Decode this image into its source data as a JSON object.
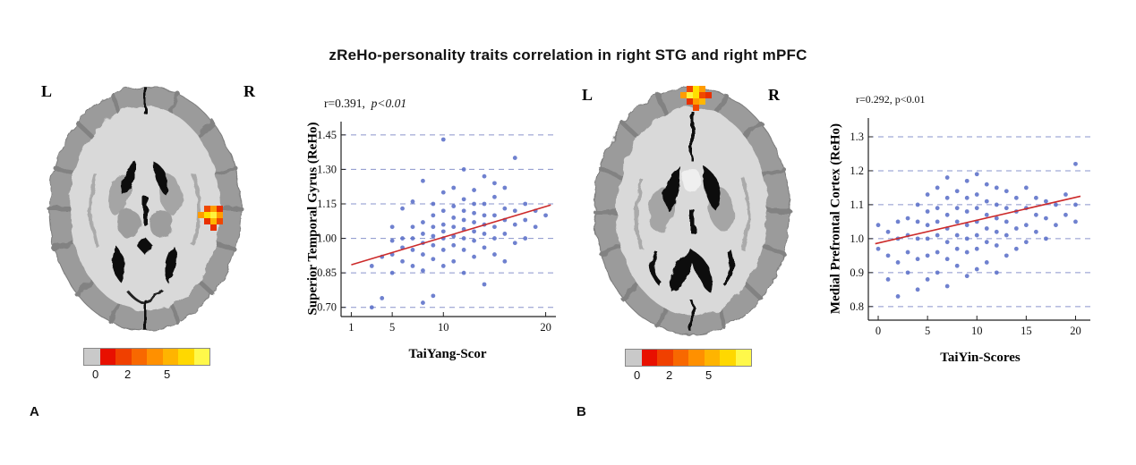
{
  "title": "zReHo-personality traits correlation in right STG and right mPFC",
  "panels": {
    "a": {
      "label": "A",
      "left": "L",
      "right": "R",
      "stat_r": "r=0.391,",
      "stat_p": "p<0.01",
      "colorbar_labels": [
        "0",
        "2",
        "5"
      ]
    },
    "b": {
      "label": "B",
      "left": "L",
      "right": "R",
      "stat": "r=0.292, p<0.01",
      "colorbar_labels": [
        "0",
        "2",
        "5"
      ]
    }
  },
  "colorbar_colors": [
    "#c9c9c9",
    "#e81000",
    "#f04000",
    "#f86800",
    "#ff9000",
    "#ffb400",
    "#ffd800",
    "#fff84a"
  ],
  "chart_data": [
    {
      "type": "scatter",
      "title": "r=0.391, p<0.01",
      "xlabel": "TaiYang-Scor",
      "ylabel": "Superior Temporal Gyrus (ReHo)",
      "xlim": [
        0,
        21
      ],
      "ylim": [
        0.66,
        1.5
      ],
      "xticks": [
        1,
        5,
        10,
        20
      ],
      "xtick_labels": [
        "1",
        "5",
        "10",
        "20"
      ],
      "yticks": [
        0.7,
        0.85,
        1.0,
        1.15,
        1.3,
        1.45
      ],
      "ytick_labels": [
        "0.70",
        "0.85",
        "1.00",
        "1.15",
        "1.30",
        "1.45"
      ],
      "grid": "dashed-horizontal",
      "grid_color": "#8a94cc",
      "point_color": "#5b6fc8",
      "line_color": "#cc2a2a",
      "regression": {
        "x": [
          1,
          20.5
        ],
        "y": [
          0.885,
          1.145
        ]
      },
      "points": [
        [
          3,
          0.7
        ],
        [
          3,
          0.88
        ],
        [
          4,
          0.74
        ],
        [
          4,
          0.92
        ],
        [
          5,
          0.85
        ],
        [
          5,
          0.93
        ],
        [
          5,
          0.99
        ],
        [
          5,
          1.05
        ],
        [
          6,
          0.9
        ],
        [
          6,
          0.96
        ],
        [
          6,
          1.0
        ],
        [
          6,
          1.13
        ],
        [
          7,
          0.88
        ],
        [
          7,
          0.95
        ],
        [
          7,
          1.0
        ],
        [
          7,
          1.05
        ],
        [
          7,
          1.16
        ],
        [
          8,
          0.72
        ],
        [
          8,
          0.86
        ],
        [
          8,
          0.93
        ],
        [
          8,
          0.98
        ],
        [
          8,
          1.02
        ],
        [
          8,
          1.07
        ],
        [
          8,
          1.25
        ],
        [
          9,
          0.75
        ],
        [
          9,
          0.91
        ],
        [
          9,
          0.97
        ],
        [
          9,
          1.01
        ],
        [
          9,
          1.05
        ],
        [
          9,
          1.1
        ],
        [
          9,
          1.15
        ],
        [
          10,
          0.88
        ],
        [
          10,
          0.95
        ],
        [
          10,
          1.0
        ],
        [
          10,
          1.03
        ],
        [
          10,
          1.06
        ],
        [
          10,
          1.12
        ],
        [
          10,
          1.2
        ],
        [
          10,
          1.43
        ],
        [
          11,
          0.9
        ],
        [
          11,
          0.97
        ],
        [
          11,
          1.01
        ],
        [
          11,
          1.05
        ],
        [
          11,
          1.09
        ],
        [
          11,
          1.14
        ],
        [
          11,
          1.22
        ],
        [
          12,
          0.85
        ],
        [
          12,
          0.95
        ],
        [
          12,
          1.0
        ],
        [
          12,
          1.04
        ],
        [
          12,
          1.08
        ],
        [
          12,
          1.12
        ],
        [
          12,
          1.17
        ],
        [
          12,
          1.3
        ],
        [
          13,
          0.92
        ],
        [
          13,
          0.99
        ],
        [
          13,
          1.03
        ],
        [
          13,
          1.07
        ],
        [
          13,
          1.11
        ],
        [
          13,
          1.15
        ],
        [
          13,
          1.21
        ],
        [
          14,
          0.8
        ],
        [
          14,
          0.96
        ],
        [
          14,
          1.02
        ],
        [
          14,
          1.06
        ],
        [
          14,
          1.1
        ],
        [
          14,
          1.15
        ],
        [
          14,
          1.27
        ],
        [
          15,
          0.93
        ],
        [
          15,
          1.0
        ],
        [
          15,
          1.05
        ],
        [
          15,
          1.1
        ],
        [
          15,
          1.18
        ],
        [
          15,
          1.24
        ],
        [
          16,
          0.9
        ],
        [
          16,
          1.02
        ],
        [
          16,
          1.08
        ],
        [
          16,
          1.13
        ],
        [
          16,
          1.22
        ],
        [
          17,
          0.98
        ],
        [
          17,
          1.06
        ],
        [
          17,
          1.12
        ],
        [
          17,
          1.35
        ],
        [
          18,
          1.0
        ],
        [
          18,
          1.08
        ],
        [
          18,
          1.15
        ],
        [
          19,
          1.05
        ],
        [
          19,
          1.12
        ],
        [
          20,
          1.1
        ]
      ]
    },
    {
      "type": "scatter",
      "title": "r=0.292, p<0.01",
      "xlabel": "TaiYin-Scores",
      "ylabel": "Medial Prefrontal Cortex (ReHo)",
      "xlim": [
        -1,
        21.5
      ],
      "ylim": [
        0.76,
        1.35
      ],
      "xticks": [
        0,
        5,
        10,
        15,
        20
      ],
      "xtick_labels": [
        "0",
        "5",
        "10",
        "15",
        "20"
      ],
      "yticks": [
        0.8,
        0.9,
        1.0,
        1.1,
        1.2,
        1.3
      ],
      "ytick_labels": [
        "0.8",
        "0.9",
        "1.0",
        "1.1",
        "1.2",
        "1.3"
      ],
      "grid": "dashed-horizontal",
      "grid_color": "#8a94cc",
      "point_color": "#5b6fc8",
      "line_color": "#cc2a2a",
      "regression": {
        "x": [
          -0.3,
          20.5
        ],
        "y": [
          0.985,
          1.125
        ]
      },
      "points": [
        [
          0,
          0.97
        ],
        [
          0,
          1.04
        ],
        [
          1,
          0.88
        ],
        [
          1,
          0.95
        ],
        [
          1,
          1.02
        ],
        [
          2,
          0.83
        ],
        [
          2,
          0.93
        ],
        [
          2,
          1.0
        ],
        [
          2,
          1.05
        ],
        [
          3,
          0.9
        ],
        [
          3,
          0.96
        ],
        [
          3,
          1.01
        ],
        [
          3,
          1.06
        ],
        [
          4,
          0.85
        ],
        [
          4,
          0.94
        ],
        [
          4,
          1.0
        ],
        [
          4,
          1.05
        ],
        [
          4,
          1.1
        ],
        [
          5,
          0.88
        ],
        [
          5,
          0.95
        ],
        [
          5,
          1.0
        ],
        [
          5,
          1.04
        ],
        [
          5,
          1.08
        ],
        [
          5,
          1.13
        ],
        [
          6,
          0.9
        ],
        [
          6,
          0.96
        ],
        [
          6,
          1.01
        ],
        [
          6,
          1.05
        ],
        [
          6,
          1.09
        ],
        [
          6,
          1.15
        ],
        [
          7,
          0.86
        ],
        [
          7,
          0.94
        ],
        [
          7,
          0.99
        ],
        [
          7,
          1.03
        ],
        [
          7,
          1.07
        ],
        [
          7,
          1.12
        ],
        [
          7,
          1.18
        ],
        [
          8,
          0.92
        ],
        [
          8,
          0.97
        ],
        [
          8,
          1.01
        ],
        [
          8,
          1.05
        ],
        [
          8,
          1.09
        ],
        [
          8,
          1.14
        ],
        [
          9,
          0.89
        ],
        [
          9,
          0.96
        ],
        [
          9,
          1.0
        ],
        [
          9,
          1.04
        ],
        [
          9,
          1.08
        ],
        [
          9,
          1.12
        ],
        [
          9,
          1.17
        ],
        [
          10,
          0.91
        ],
        [
          10,
          0.97
        ],
        [
          10,
          1.01
        ],
        [
          10,
          1.05
        ],
        [
          10,
          1.09
        ],
        [
          10,
          1.13
        ],
        [
          10,
          1.19
        ],
        [
          11,
          0.93
        ],
        [
          11,
          0.99
        ],
        [
          11,
          1.03
        ],
        [
          11,
          1.07
        ],
        [
          11,
          1.11
        ],
        [
          11,
          1.16
        ],
        [
          12,
          0.9
        ],
        [
          12,
          0.98
        ],
        [
          12,
          1.02
        ],
        [
          12,
          1.06
        ],
        [
          12,
          1.1
        ],
        [
          12,
          1.15
        ],
        [
          13,
          0.95
        ],
        [
          13,
          1.01
        ],
        [
          13,
          1.05
        ],
        [
          13,
          1.09
        ],
        [
          13,
          1.14
        ],
        [
          14,
          0.97
        ],
        [
          14,
          1.03
        ],
        [
          14,
          1.08
        ],
        [
          14,
          1.12
        ],
        [
          15,
          0.99
        ],
        [
          15,
          1.04
        ],
        [
          15,
          1.09
        ],
        [
          15,
          1.15
        ],
        [
          16,
          1.02
        ],
        [
          16,
          1.07
        ],
        [
          16,
          1.12
        ],
        [
          17,
          1.0
        ],
        [
          17,
          1.06
        ],
        [
          17,
          1.11
        ],
        [
          18,
          1.04
        ],
        [
          18,
          1.1
        ],
        [
          19,
          1.07
        ],
        [
          19,
          1.13
        ],
        [
          20,
          1.05
        ],
        [
          20,
          1.1
        ],
        [
          20,
          1.22
        ]
      ]
    }
  ]
}
